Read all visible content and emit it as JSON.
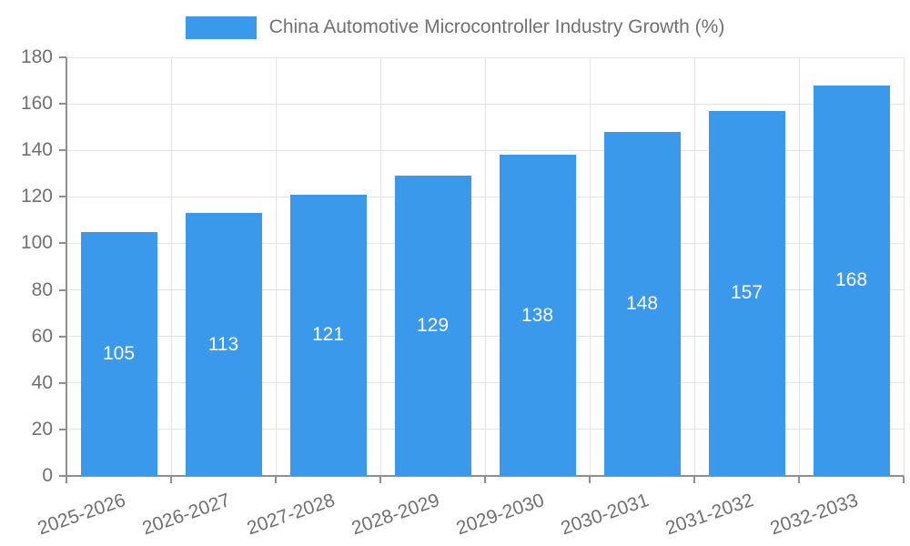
{
  "chart_data": {
    "type": "bar",
    "title": "China Automotive Microcontroller Industry Growth (%)",
    "xlabel": "",
    "ylabel": "",
    "categories": [
      "2025-2026",
      "2026-2027",
      "2027-2028",
      "2028-2029",
      "2029-2030",
      "2030-2031",
      "2031-2032",
      "2032-2033"
    ],
    "values": [
      105,
      113,
      121,
      129,
      138,
      148,
      157,
      168
    ],
    "ylim": [
      0,
      180
    ],
    "yticks": [
      0,
      20,
      40,
      60,
      80,
      100,
      120,
      140,
      160,
      180
    ],
    "bar_value_labels_shown": true,
    "grid": true,
    "legend_position": "top-center",
    "colors": {
      "bar": "#3B99EC",
      "bar_label": "#FFFFFF",
      "axis": "#8F8F8F",
      "grid": "#E4E4E4",
      "tick_text": "#717171"
    }
  }
}
